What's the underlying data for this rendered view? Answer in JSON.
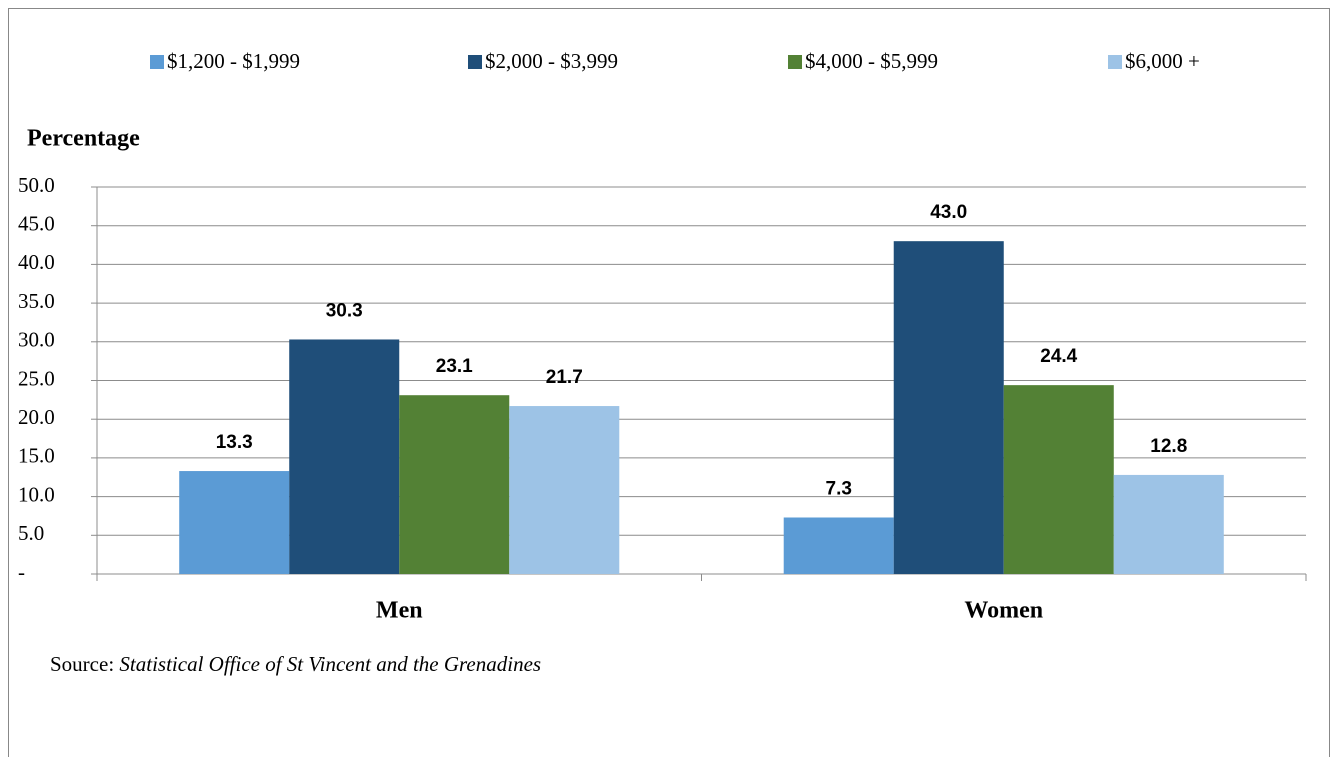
{
  "chart_data": {
    "type": "bar",
    "y_label": "Percentage",
    "categories": [
      "Men",
      "Women"
    ],
    "series": [
      {
        "name": "$1,200 - $1,999",
        "color": "#5b9bd5",
        "values": [
          13.3,
          7.3
        ],
        "value_labels": [
          "13.3",
          "7.3"
        ]
      },
      {
        "name": "$2,000 - $3,999",
        "color": "#1f4e79",
        "values": [
          30.3,
          43.0
        ],
        "value_labels": [
          "30.3",
          "43.0"
        ]
      },
      {
        "name": "$4,000 - $5,999",
        "color": "#538135",
        "values": [
          23.1,
          24.4
        ],
        "value_labels": [
          "23.1",
          "24.4"
        ]
      },
      {
        "name": "$6,000 +",
        "color": "#9dc3e6",
        "values": [
          21.7,
          12.8
        ],
        "value_labels": [
          "21.7",
          "12.8"
        ]
      }
    ],
    "ylim": [
      0,
      50
    ],
    "yticks": [
      {
        "value": 0,
        "label": "-"
      },
      {
        "value": 5,
        "label": "5.0"
      },
      {
        "value": 10,
        "label": "10.0"
      },
      {
        "value": 15,
        "label": "15.0"
      },
      {
        "value": 20,
        "label": "20.0"
      },
      {
        "value": 25,
        "label": "25.0"
      },
      {
        "value": 30,
        "label": "30.0"
      },
      {
        "value": 35,
        "label": "35.0"
      },
      {
        "value": 40,
        "label": "40.0"
      },
      {
        "value": 45,
        "label": "45.0"
      },
      {
        "value": 50,
        "label": "50.0"
      }
    ],
    "grid": true,
    "legend": "top",
    "source_label": "Source:",
    "source": "Statistical Office of St Vincent and the Grenadines"
  }
}
